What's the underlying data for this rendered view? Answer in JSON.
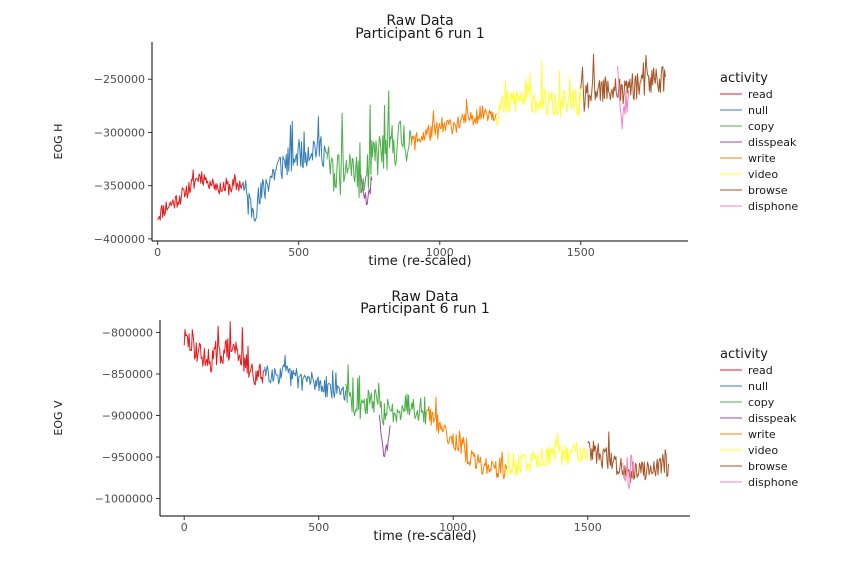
{
  "colors": {
    "read": "#e41a1c",
    "null": "#377eb8",
    "copy": "#4daf4a",
    "disspeak": "#984ea3",
    "write": "#ff7f00",
    "video": "#ffff33",
    "browse": "#a65628",
    "disphone": "#f781bf"
  },
  "chart_data": [
    {
      "type": "line",
      "title": "Raw Data",
      "subtitle": "Participant 6 run 1",
      "xlabel": "time (re-scaled)",
      "ylabel": "EOG H",
      "xlim": [
        -20,
        1880
      ],
      "ylim": [
        -402000,
        -215000
      ],
      "x_ticks": [
        0,
        500,
        1000,
        1500
      ],
      "x_tick_labels": [
        "0",
        "500",
        "1000",
        "1500"
      ],
      "y_ticks": [
        -400000,
        -350000,
        -300000,
        -250000
      ],
      "y_tick_labels": [
        "−400000",
        "−350000",
        "−300000",
        "−250000"
      ],
      "legend": {
        "title": "activity",
        "position": "right",
        "entries": [
          "read",
          "null",
          "copy",
          "disspeak",
          "write",
          "video",
          "browse",
          "disphone"
        ]
      },
      "series": [
        {
          "name": "read",
          "x": [
            0,
            30,
            60,
            90,
            120,
            150,
            180,
            210,
            240,
            270,
            300
          ],
          "y": [
            -378000,
            -370000,
            -365000,
            -358000,
            -350000,
            -340000,
            -345000,
            -350000,
            -352000,
            -350000,
            -348000
          ],
          "noise": 16000
        },
        {
          "name": "null",
          "x": [
            300,
            330,
            360,
            390,
            420,
            450,
            480,
            510,
            540,
            570,
            600
          ],
          "y": [
            -350000,
            -370000,
            -365000,
            -345000,
            -335000,
            -328000,
            -322000,
            -318000,
            -315000,
            -312000,
            -320000
          ],
          "noise": 32000
        },
        {
          "name": "copy",
          "x": [
            600,
            630,
            660,
            690,
            720,
            735,
            750,
            780,
            810,
            840,
            870,
            900
          ],
          "y": [
            -330000,
            -340000,
            -335000,
            -330000,
            -345000,
            -350000,
            -330000,
            -320000,
            -315000,
            -310000,
            -305000,
            -310000
          ],
          "noise": 45000
        },
        {
          "name": "disspeak",
          "x": [
            720,
            730,
            740,
            750,
            760
          ],
          "y": [
            -345000,
            -355000,
            -362000,
            -355000,
            -345000
          ],
          "noise": 15000
        },
        {
          "name": "write",
          "x": [
            900,
            930,
            960,
            990,
            1020,
            1050,
            1080,
            1110,
            1140,
            1170,
            1200
          ],
          "y": [
            -310000,
            -305000,
            -300000,
            -298000,
            -295000,
            -292000,
            -290000,
            -285000,
            -282000,
            -280000,
            -282000
          ],
          "noise": 18000
        },
        {
          "name": "video",
          "x": [
            1200,
            1230,
            1260,
            1290,
            1320,
            1350,
            1380,
            1410,
            1440,
            1470,
            1500
          ],
          "y": [
            -280000,
            -275000,
            -270000,
            -268000,
            -265000,
            -270000,
            -272000,
            -275000,
            -273000,
            -270000,
            -272000
          ],
          "noise": 30000
        },
        {
          "name": "browse",
          "x": [
            1500,
            1530,
            1560,
            1590,
            1620,
            1650,
            1680,
            1710,
            1740,
            1770,
            1800
          ],
          "y": [
            -268000,
            -265000,
            -262000,
            -262000,
            -258000,
            -262000,
            -255000,
            -255000,
            -252000,
            -250000,
            -248000
          ],
          "noise": 30000
        },
        {
          "name": "disphone",
          "x": [
            1630,
            1640,
            1650,
            1660,
            1670
          ],
          "y": [
            -250000,
            -265000,
            -290000,
            -275000,
            -260000
          ],
          "noise": 35000
        }
      ]
    },
    {
      "type": "line",
      "title": "Raw Data",
      "subtitle": "Participant 6 run 1",
      "xlabel": "time (re-scaled)",
      "ylabel": "EOG V",
      "xlim": [
        -90,
        1880
      ],
      "ylim": [
        -1021000,
        -785000
      ],
      "x_ticks": [
        0,
        500,
        1000,
        1500
      ],
      "x_tick_labels": [
        "0",
        "500",
        "1000",
        "1500"
      ],
      "y_ticks": [
        -1000000,
        -950000,
        -900000,
        -850000,
        -800000
      ],
      "y_tick_labels": [
        "−1000000",
        "−950000",
        "−900000",
        "−850000",
        "−800000"
      ],
      "legend": {
        "title": "activity",
        "position": "right",
        "entries": [
          "read",
          "null",
          "copy",
          "disspeak",
          "write",
          "video",
          "browse",
          "disphone"
        ]
      },
      "series": [
        {
          "name": "read",
          "x": [
            0,
            30,
            60,
            90,
            120,
            150,
            180,
            210,
            240,
            270,
            300
          ],
          "y": [
            -808000,
            -815000,
            -825000,
            -835000,
            -828000,
            -822000,
            -818000,
            -826000,
            -845000,
            -855000,
            -845000
          ],
          "noise": 30000
        },
        {
          "name": "null",
          "x": [
            300,
            330,
            360,
            390,
            420,
            450,
            480,
            510,
            540,
            570,
            600
          ],
          "y": [
            -845000,
            -848000,
            -850000,
            -852000,
            -855000,
            -857000,
            -860000,
            -862000,
            -865000,
            -868000,
            -870000
          ],
          "noise": 28000
        },
        {
          "name": "copy",
          "x": [
            600,
            630,
            660,
            690,
            720,
            750,
            780,
            810,
            840,
            870,
            900
          ],
          "y": [
            -872000,
            -885000,
            -890000,
            -880000,
            -885000,
            -900000,
            -895000,
            -888000,
            -885000,
            -890000,
            -895000
          ],
          "noise": 32000
        },
        {
          "name": "disspeak",
          "x": [
            725,
            735,
            745,
            755,
            765
          ],
          "y": [
            -905000,
            -930000,
            -950000,
            -935000,
            -912000
          ],
          "noise": 18000
        },
        {
          "name": "write",
          "x": [
            900,
            930,
            960,
            990,
            1020,
            1050,
            1080,
            1110,
            1140,
            1170,
            1200
          ],
          "y": [
            -893000,
            -905000,
            -915000,
            -925000,
            -935000,
            -948000,
            -955000,
            -960000,
            -962000,
            -964000,
            -965000
          ],
          "noise": 24000
        },
        {
          "name": "video",
          "x": [
            1200,
            1230,
            1260,
            1290,
            1320,
            1350,
            1380,
            1410,
            1440,
            1470,
            1500
          ],
          "y": [
            -965000,
            -960000,
            -957000,
            -955000,
            -952000,
            -948000,
            -946000,
            -948000,
            -945000,
            -942000,
            -940000
          ],
          "noise": 28000
        },
        {
          "name": "browse",
          "x": [
            1500,
            1530,
            1560,
            1590,
            1620,
            1650,
            1680,
            1710,
            1740,
            1770,
            1800
          ],
          "y": [
            -940000,
            -945000,
            -950000,
            -955000,
            -962000,
            -968000,
            -960000,
            -965000,
            -962000,
            -960000,
            -958000
          ],
          "noise": 30000
        },
        {
          "name": "disphone",
          "x": [
            1630,
            1640,
            1650,
            1660,
            1670
          ],
          "y": [
            -950000,
            -960000,
            -970000,
            -965000,
            -955000
          ],
          "noise": 40000
        }
      ]
    }
  ]
}
